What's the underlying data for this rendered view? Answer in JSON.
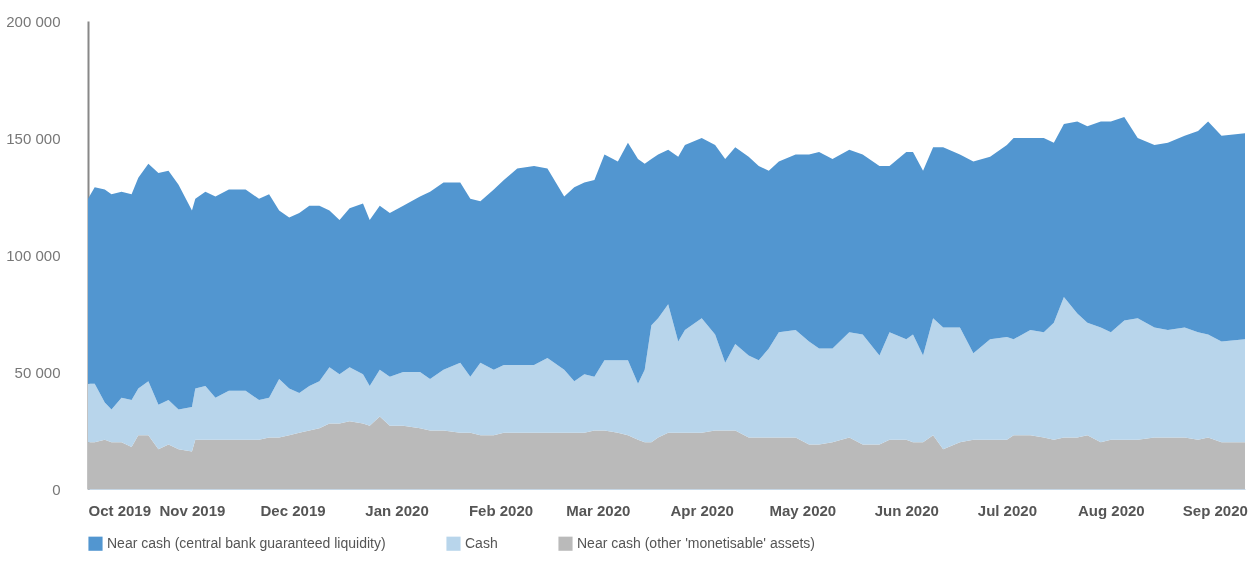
{
  "chart_data": {
    "type": "area",
    "stacked": true,
    "x": [
      "2019-10-01",
      "2019-10-03",
      "2019-10-06",
      "2019-10-08",
      "2019-10-11",
      "2019-10-14",
      "2019-10-16",
      "2019-10-19",
      "2019-10-22",
      "2019-10-25",
      "2019-10-28",
      "2019-11-01",
      "2019-11-02",
      "2019-11-05",
      "2019-11-08",
      "2019-11-12",
      "2019-11-17",
      "2019-11-21",
      "2019-11-24",
      "2019-11-27",
      "2019-11-30",
      "2019-12-03",
      "2019-12-06",
      "2019-12-09",
      "2019-12-12",
      "2019-12-15",
      "2019-12-18",
      "2019-12-22",
      "2019-12-24",
      "2019-12-27",
      "2019-12-30",
      "2020-01-03",
      "2020-01-08",
      "2020-01-11",
      "2020-01-15",
      "2020-01-20",
      "2020-01-23",
      "2020-01-26",
      "2020-01-30",
      "2020-02-02",
      "2020-02-06",
      "2020-02-11",
      "2020-02-15",
      "2020-02-20",
      "2020-02-23",
      "2020-02-26",
      "2020-02-29",
      "2020-03-03",
      "2020-03-07",
      "2020-03-10",
      "2020-03-13",
      "2020-03-15",
      "2020-03-17",
      "2020-03-19",
      "2020-03-22",
      "2020-03-25",
      "2020-03-27",
      "2020-04-01",
      "2020-04-05",
      "2020-04-08",
      "2020-04-11",
      "2020-04-15",
      "2020-04-18",
      "2020-04-21",
      "2020-04-24",
      "2020-04-29",
      "2020-05-03",
      "2020-05-06",
      "2020-05-10",
      "2020-05-15",
      "2020-05-19",
      "2020-05-24",
      "2020-05-27",
      "2020-06-01",
      "2020-06-03",
      "2020-06-06",
      "2020-06-09",
      "2020-06-12",
      "2020-06-17",
      "2020-06-21",
      "2020-06-26",
      "2020-07-01",
      "2020-07-03",
      "2020-07-08",
      "2020-07-12",
      "2020-07-15",
      "2020-07-18",
      "2020-07-22",
      "2020-07-25",
      "2020-07-29",
      "2020-08-01",
      "2020-08-05",
      "2020-08-09",
      "2020-08-14",
      "2020-08-18",
      "2020-08-23",
      "2020-08-27",
      "2020-08-30",
      "2020-09-03",
      "2020-09-10"
    ],
    "series": [
      {
        "name": "Near cash (other 'monetisable' assets)",
        "color": "#bababa",
        "values": [
          20000,
          20000,
          21000,
          20000,
          20000,
          18000,
          23000,
          23000,
          17000,
          19000,
          17000,
          16000,
          21000,
          21000,
          21000,
          21000,
          21000,
          21000,
          22000,
          22000,
          23000,
          24000,
          25000,
          26000,
          28000,
          28000,
          29000,
          28000,
          27000,
          31000,
          27000,
          27000,
          26000,
          25000,
          25000,
          24000,
          24000,
          23000,
          23000,
          24000,
          24000,
          24000,
          24000,
          24000,
          24000,
          24000,
          25000,
          25000,
          24000,
          23000,
          21000,
          20000,
          20000,
          22000,
          24000,
          24000,
          24000,
          24000,
          25000,
          25000,
          25000,
          22000,
          22000,
          22000,
          22000,
          22000,
          19000,
          19000,
          20000,
          22000,
          19000,
          19000,
          21000,
          21000,
          20000,
          20000,
          23000,
          17000,
          20000,
          21000,
          21000,
          21000,
          23000,
          23000,
          22000,
          21000,
          22000,
          22000,
          23000,
          20000,
          21000,
          21000,
          21000,
          22000,
          22000,
          22000,
          21000,
          22000,
          20000,
          20000
        ]
      },
      {
        "name": "Cash",
        "color": "#b8d5eb",
        "values": [
          25000,
          25000,
          16000,
          14000,
          19000,
          20000,
          20000,
          23000,
          19000,
          19000,
          17000,
          19000,
          22000,
          23000,
          18000,
          21000,
          21000,
          17000,
          17000,
          25000,
          20000,
          17000,
          19000,
          20000,
          24000,
          21000,
          23000,
          21000,
          17000,
          20000,
          21000,
          23000,
          24000,
          22000,
          26000,
          30000,
          24000,
          31000,
          28000,
          29000,
          29000,
          29000,
          32000,
          27000,
          22000,
          25000,
          23000,
          30000,
          31000,
          32000,
          24000,
          31000,
          50000,
          51000,
          55000,
          39000,
          44000,
          49000,
          41000,
          29000,
          37000,
          35000,
          33000,
          38000,
          45000,
          46000,
          44000,
          41000,
          40000,
          45000,
          47000,
          38000,
          46000,
          43000,
          46000,
          37000,
          50000,
          52000,
          49000,
          37000,
          43000,
          44000,
          41000,
          45000,
          45000,
          50000,
          60000,
          53000,
          48000,
          49000,
          46000,
          51000,
          52000,
          47000,
          46000,
          47000,
          46000,
          44000,
          43000,
          44000
        ]
      },
      {
        "name": "Near cash (central bank guaranteed liquidity)",
        "color": "#5296d0",
        "values": [
          79000,
          84000,
          91000,
          92000,
          88000,
          88000,
          90000,
          93000,
          99000,
          98000,
          96000,
          84000,
          81000,
          83000,
          86000,
          86000,
          86000,
          86000,
          87000,
          72000,
          73000,
          77000,
          77000,
          75000,
          67000,
          66000,
          68000,
          73000,
          71000,
          70000,
          70000,
          71000,
          75000,
          80000,
          80000,
          77000,
          76000,
          69000,
          77000,
          79000,
          84000,
          85000,
          81000,
          74000,
          83000,
          82000,
          84000,
          88000,
          85000,
          93000,
          96000,
          88000,
          71000,
          70000,
          66000,
          79000,
          79000,
          77000,
          81000,
          87000,
          84000,
          85000,
          83000,
          76000,
          73000,
          75000,
          80000,
          84000,
          81000,
          78000,
          77000,
          81000,
          71000,
          80000,
          78000,
          79000,
          73000,
          77000,
          74000,
          82000,
          78000,
          82000,
          86000,
          82000,
          83000,
          77000,
          74000,
          82000,
          84000,
          88000,
          90000,
          87000,
          77000,
          78000,
          80000,
          82000,
          86000,
          91000,
          88000,
          88000
        ]
      }
    ],
    "xlim": [
      "2019-10-01",
      "2020-09-10"
    ],
    "xticks": [
      {
        "value": "2019-10-01",
        "label": "Oct 2019"
      },
      {
        "value": "2019-11-01",
        "label": "Nov 2019"
      },
      {
        "value": "2019-12-01",
        "label": "Dec 2019"
      },
      {
        "value": "2020-01-01",
        "label": "Jan 2020"
      },
      {
        "value": "2020-02-01",
        "label": "Feb 2020"
      },
      {
        "value": "2020-03-01",
        "label": "Mar 2020"
      },
      {
        "value": "2020-04-01",
        "label": "Apr 2020"
      },
      {
        "value": "2020-05-01",
        "label": "May 2020"
      },
      {
        "value": "2020-06-01",
        "label": "Jun 2020"
      },
      {
        "value": "2020-07-01",
        "label": "Jul 2020"
      },
      {
        "value": "2020-08-01",
        "label": "Aug 2020"
      },
      {
        "value": "2020-09-01",
        "label": "Sep 2020"
      }
    ],
    "ylim": [
      0,
      200000
    ],
    "yticks": [
      0,
      {
        "value": 50000,
        "label": "50 000"
      },
      {
        "value": 100000,
        "label": "100 000"
      },
      {
        "value": 150000,
        "label": "150 000"
      },
      {
        "value": 200000,
        "label": "200 000"
      }
    ],
    "grid": false,
    "legend": "bottom"
  }
}
